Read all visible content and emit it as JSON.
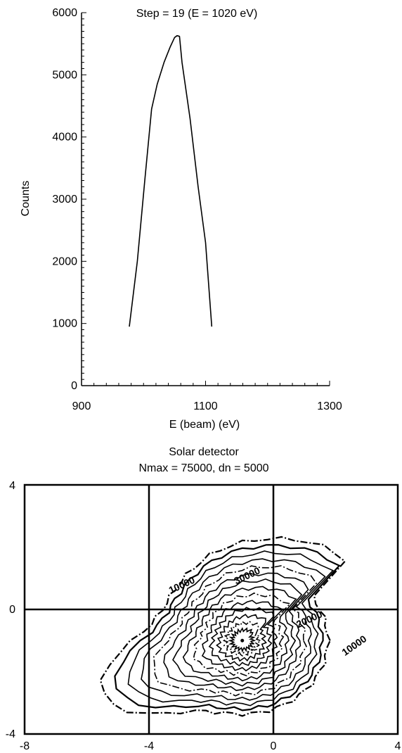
{
  "chart_data": [
    {
      "type": "line",
      "title": "Step = 19 (E = 1020 eV)",
      "xlabel": "E (beam) (eV)",
      "ylabel": "Counts",
      "xlim": [
        900,
        1300
      ],
      "ylim": [
        0,
        6000
      ],
      "xticks": [
        "900",
        "1100",
        "1300"
      ],
      "yticks": [
        "0",
        "1000",
        "2000",
        "3000",
        "4000",
        "5000",
        "6000"
      ],
      "grid": false,
      "series": [
        {
          "x": [
            977,
            990,
            1002,
            1013,
            1022,
            1033,
            1043,
            1050,
            1054,
            1058,
            1062,
            1075,
            1088,
            1100,
            1110
          ],
          "y": [
            950,
            2000,
            3300,
            4450,
            4850,
            5200,
            5450,
            5600,
            5630,
            5620,
            5200,
            4300,
            3200,
            2300,
            950
          ]
        }
      ]
    },
    {
      "type": "contour",
      "title": "Solar detector",
      "subtitle": "Nmax = 75000, dn = 5000",
      "xlim": [
        -8,
        4
      ],
      "ylim": [
        -4,
        4
      ],
      "xticks": [
        "-8",
        "-4",
        "0",
        "4"
      ],
      "yticks": [
        "-4",
        "0",
        "4"
      ],
      "gridlines_x": [
        -4,
        0
      ],
      "gridlines_y": [
        0
      ],
      "peak": [
        -1.0,
        -1.0
      ],
      "contour_labels": [
        {
          "text": "10000",
          "x": -3.3,
          "y": 0.5
        },
        {
          "text": "10000",
          "x": 2.3,
          "y": -1.5
        },
        {
          "text": "20000",
          "x": 0.8,
          "y": -0.6
        },
        {
          "text": "30000",
          "x": -1.2,
          "y": 0.8
        }
      ]
    }
  ]
}
